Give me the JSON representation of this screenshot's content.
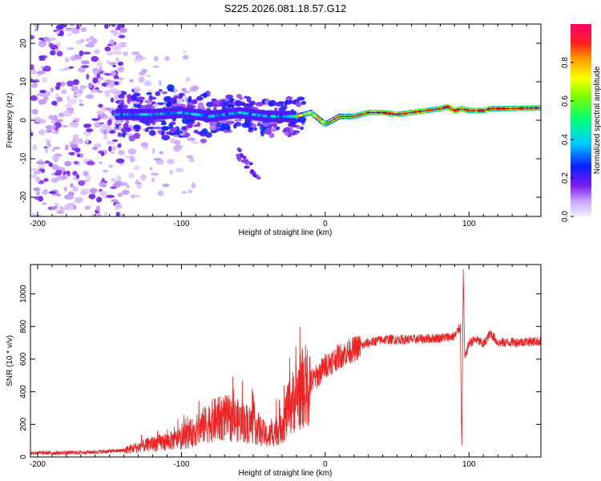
{
  "title": "S225.2026.081.18.57.G12",
  "chart_data": [
    {
      "type": "heatmap",
      "xlabel": "Height of straight line (km)",
      "ylabel": "Frequency (Hz)",
      "xlim": [
        -205,
        150
      ],
      "ylim": [
        -25,
        25
      ],
      "xticks": [
        -200,
        -100,
        0,
        100
      ],
      "yticks": [
        -20,
        -10,
        0,
        10,
        20
      ],
      "ridge": {
        "x": [
          -140,
          -120,
          -100,
          -80,
          -60,
          -40,
          -20,
          -10,
          -5,
          0,
          10,
          20,
          30,
          40,
          50,
          60,
          70,
          80,
          85,
          90,
          95,
          100,
          110,
          115,
          120,
          150
        ],
        "y": [
          1.5,
          1.5,
          2.0,
          1.0,
          2.0,
          1.0,
          1.0,
          2.0,
          0.5,
          -1.0,
          1.0,
          1.0,
          2.0,
          2.0,
          1.5,
          2.0,
          2.5,
          3.0,
          3.5,
          2.5,
          3.0,
          2.5,
          2.5,
          3.0,
          3.0,
          3.2
        ]
      },
      "colorbar": {
        "label": "Normalized spectral amplitude",
        "range": [
          0,
          1
        ],
        "ticks": [
          0.0,
          0.2,
          0.4,
          0.6,
          0.8
        ]
      }
    },
    {
      "type": "line",
      "xlabel": "Height of straight line (km)",
      "ylabel": "SNR (10 * v/v)",
      "xlim": [
        -205,
        150
      ],
      "ylim": [
        0,
        1180
      ],
      "xticks": [
        -200,
        -100,
        0,
        100
      ],
      "yticks": [
        0,
        200,
        400,
        600,
        800,
        1000
      ],
      "series": [
        {
          "name": "SNR",
          "color": "#ee2222",
          "x": [
            -205,
            -180,
            -160,
            -140,
            -130,
            -120,
            -100,
            -90,
            -80,
            -70,
            -60,
            -50,
            -40,
            -30,
            -25,
            -20,
            -15,
            -10,
            -5,
            0,
            10,
            20,
            30,
            40,
            60,
            80,
            90,
            94,
            95,
            96,
            97,
            100,
            105,
            110,
            115,
            120,
            150
          ],
          "y": [
            25,
            25,
            30,
            40,
            60,
            80,
            110,
            160,
            220,
            240,
            220,
            200,
            120,
            200,
            300,
            380,
            430,
            460,
            500,
            560,
            620,
            660,
            700,
            720,
            720,
            730,
            740,
            800,
            30,
            1150,
            600,
            700,
            720,
            690,
            760,
            700,
            710
          ]
        }
      ]
    }
  ]
}
